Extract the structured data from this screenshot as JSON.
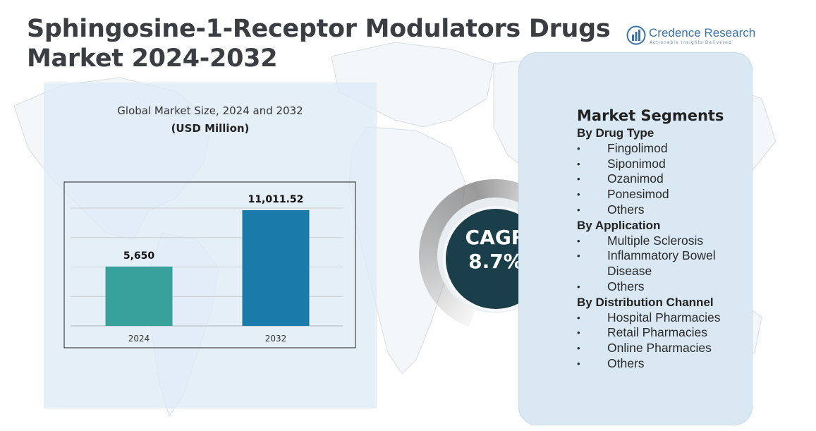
{
  "title": {
    "line1": "Sphingosine-1-Receptor Modulators Drugs",
    "line2": "Market  2024-2032"
  },
  "logo": {
    "name": "Credence Research",
    "tagline": "Actionable Insights Delivered"
  },
  "colors": {
    "bar_2024": "#38a19c",
    "bar_2032": "#1a7bab",
    "cagr_circle": "#1a3f4a",
    "panel": "#dfebf6",
    "card": "#d9e8f3"
  },
  "chart_data": {
    "type": "bar",
    "title": "Global Market Size, 2024 and 2032",
    "unit": "(USD Million)",
    "categories": [
      "2024",
      "2032"
    ],
    "values": [
      5650,
      11011.52
    ],
    "data_labels": [
      "5,650",
      "11,011.52"
    ],
    "ylim": [
      0,
      12000
    ],
    "grid": true,
    "legend": "none"
  },
  "cagr": {
    "label": "CAGR",
    "value": "8.7%"
  },
  "segments": {
    "heading": "Market Segments",
    "groups": [
      {
        "title": "By Drug Type",
        "items": [
          "Fingolimod",
          "Siponimod",
          "Ozanimod",
          "Ponesimod",
          "Others"
        ]
      },
      {
        "title": "By Application",
        "items": [
          "Multiple Sclerosis",
          "Inflammatory Bowel Disease",
          "Others"
        ]
      },
      {
        "title": "By Distribution Channel",
        "items": [
          "Hospital Pharmacies",
          "Retail Pharmacies",
          "Online Pharmacies",
          "Others"
        ]
      }
    ],
    "bullet": "•"
  }
}
